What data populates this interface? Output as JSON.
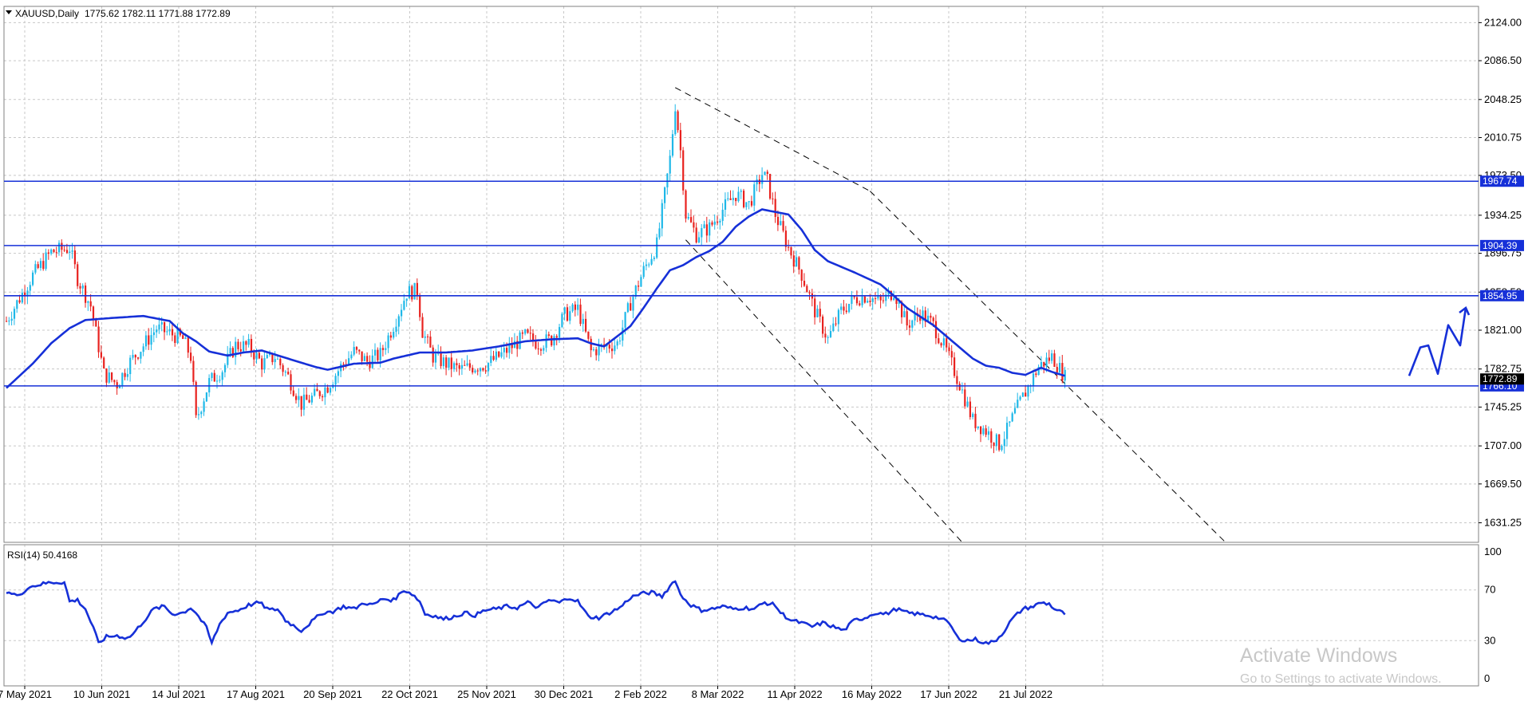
{
  "header": {
    "symbol": "XAUUSD,Daily",
    "ohlc": "1775.62 1782.11 1771.88 1772.89"
  },
  "rsi_header": "RSI(14) 50.4168",
  "watermark": {
    "title": "Activate Windows",
    "subtitle": "Go to Settings to activate Windows."
  },
  "colors": {
    "bull": "#1fb8e8",
    "bear": "#e8221f",
    "ma": "#1630d8",
    "level": "#1630d8",
    "grid": "#c8c8c8",
    "frame": "#808080"
  },
  "chart_data": {
    "type": "candlestick",
    "price_range": [
      1612,
      2140
    ],
    "price_ticks": [
      2124.0,
      2086.5,
      2048.25,
      2010.75,
      1973.5,
      1934.25,
      1896.75,
      1858.5,
      1821.0,
      1782.75,
      1745.25,
      1707.0,
      1669.5,
      1631.25
    ],
    "price_tick_labels": [
      "2124.00",
      "2086.50",
      "2048.25",
      "2010.75",
      "1973.50",
      "1934.25",
      "1896.75",
      "1858.50",
      "1821.00",
      "1782.75",
      "1745.25",
      "1707.00",
      "1669.50",
      "1631.25"
    ],
    "date_labels": [
      "7 May 2021",
      "10 Jun 2021",
      "14 Jul 2021",
      "17 Aug 2021",
      "20 Sep 2021",
      "22 Oct 2021",
      "25 Nov 2021",
      "30 Dec 2021",
      "2 Feb 2022",
      "8 Mar 2022",
      "11 Apr 2022",
      "16 May 2022",
      "17 Jun 2022",
      "21 Jul 2022"
    ],
    "levels": [
      {
        "price": 1967.74,
        "label": "1967.74"
      },
      {
        "price": 1904.39,
        "label": "1904.39"
      },
      {
        "price": 1854.95,
        "label": "1854.95"
      },
      {
        "price": 1766.1,
        "label": "1766.10"
      }
    ],
    "current_price": {
      "price": 1772.89,
      "label": "1772.89"
    },
    "close_anchors": [
      [
        0,
        1830
      ],
      [
        10,
        1875
      ],
      [
        17,
        1898
      ],
      [
        24,
        1902
      ],
      [
        27,
        1872
      ],
      [
        32,
        1845
      ],
      [
        37,
        1778
      ],
      [
        42,
        1768
      ],
      [
        47,
        1790
      ],
      [
        52,
        1806
      ],
      [
        57,
        1823
      ],
      [
        62,
        1818
      ],
      [
        67,
        1812
      ],
      [
        70,
        1795
      ],
      [
        72,
        1732
      ],
      [
        77,
        1770
      ],
      [
        82,
        1782
      ],
      [
        87,
        1806
      ],
      [
        92,
        1805
      ],
      [
        97,
        1788
      ],
      [
        102,
        1795
      ],
      [
        107,
        1775
      ],
      [
        112,
        1748
      ],
      [
        117,
        1756
      ],
      [
        122,
        1766
      ],
      [
        127,
        1785
      ],
      [
        132,
        1800
      ],
      [
        137,
        1790
      ],
      [
        142,
        1797
      ],
      [
        147,
        1826
      ],
      [
        152,
        1858
      ],
      [
        156,
        1860
      ],
      [
        158,
        1820
      ],
      [
        162,
        1795
      ],
      [
        167,
        1788
      ],
      [
        172,
        1782
      ],
      [
        177,
        1785
      ],
      [
        182,
        1787
      ],
      [
        187,
        1795
      ],
      [
        192,
        1805
      ],
      [
        197,
        1815
      ],
      [
        202,
        1808
      ],
      [
        207,
        1812
      ],
      [
        212,
        1836
      ],
      [
        217,
        1842
      ],
      [
        222,
        1800
      ],
      [
        227,
        1805
      ],
      [
        232,
        1808
      ],
      [
        237,
        1848
      ],
      [
        242,
        1880
      ],
      [
        247,
        1905
      ],
      [
        250,
        1955
      ],
      [
        252,
        1990
      ],
      [
        254,
        2043
      ],
      [
        256,
        1998
      ],
      [
        258,
        1935
      ],
      [
        262,
        1915
      ],
      [
        267,
        1922
      ],
      [
        272,
        1940
      ],
      [
        277,
        1955
      ],
      [
        282,
        1945
      ],
      [
        287,
        1975
      ],
      [
        289,
        1968
      ],
      [
        292,
        1935
      ],
      [
        297,
        1902
      ],
      [
        302,
        1876
      ],
      [
        307,
        1840
      ],
      [
        312,
        1812
      ],
      [
        317,
        1840
      ],
      [
        322,
        1852
      ],
      [
        327,
        1855
      ],
      [
        332,
        1848
      ],
      [
        337,
        1860
      ],
      [
        342,
        1826
      ],
      [
        347,
        1838
      ],
      [
        352,
        1826
      ],
      [
        357,
        1800
      ],
      [
        362,
        1768
      ],
      [
        367,
        1732
      ],
      [
        372,
        1722
      ],
      [
        377,
        1708
      ],
      [
        380,
        1722
      ],
      [
        383,
        1740
      ],
      [
        387,
        1760
      ],
      [
        392,
        1785
      ],
      [
        397,
        1795
      ],
      [
        402,
        1775
      ]
    ],
    "ma_anchors": [
      [
        0,
        1764
      ],
      [
        10,
        1788
      ],
      [
        17,
        1808
      ],
      [
        24,
        1823
      ],
      [
        30,
        1831
      ],
      [
        40,
        1833
      ],
      [
        52,
        1835
      ],
      [
        62,
        1830
      ],
      [
        67,
        1818
      ],
      [
        72,
        1810
      ],
      [
        77,
        1800
      ],
      [
        84,
        1796
      ],
      [
        90,
        1799
      ],
      [
        97,
        1801
      ],
      [
        107,
        1793
      ],
      [
        117,
        1785
      ],
      [
        122,
        1782
      ],
      [
        132,
        1788
      ],
      [
        142,
        1789
      ],
      [
        147,
        1793
      ],
      [
        157,
        1799
      ],
      [
        167,
        1799
      ],
      [
        177,
        1801
      ],
      [
        187,
        1805
      ],
      [
        197,
        1810
      ],
      [
        207,
        1812
      ],
      [
        217,
        1813
      ],
      [
        222,
        1808
      ],
      [
        227,
        1805
      ],
      [
        237,
        1825
      ],
      [
        242,
        1843
      ],
      [
        247,
        1862
      ],
      [
        252,
        1880
      ],
      [
        257,
        1885
      ],
      [
        262,
        1893
      ],
      [
        267,
        1899
      ],
      [
        272,
        1908
      ],
      [
        277,
        1923
      ],
      [
        282,
        1933
      ],
      [
        287,
        1940
      ],
      [
        297,
        1935
      ],
      [
        302,
        1920
      ],
      [
        307,
        1900
      ],
      [
        312,
        1889
      ],
      [
        322,
        1878
      ],
      [
        332,
        1866
      ],
      [
        337,
        1855
      ],
      [
        342,
        1843
      ],
      [
        352,
        1826
      ],
      [
        357,
        1815
      ],
      [
        362,
        1804
      ],
      [
        367,
        1793
      ],
      [
        372,
        1786
      ],
      [
        377,
        1784
      ],
      [
        382,
        1779
      ],
      [
        387,
        1777
      ],
      [
        393,
        1784
      ],
      [
        397,
        1780
      ],
      [
        402,
        1776
      ]
    ],
    "rsi": {
      "range": [
        0,
        100
      ],
      "tick_labels": [
        "100",
        "70",
        "30",
        "0"
      ],
      "ticks": [
        100,
        70,
        30,
        0
      ],
      "anchors": [
        [
          0,
          69
        ],
        [
          5,
          65
        ],
        [
          8,
          72
        ],
        [
          12,
          74
        ],
        [
          17,
          76
        ],
        [
          22,
          76
        ],
        [
          24,
          61
        ],
        [
          27,
          62
        ],
        [
          30,
          55
        ],
        [
          33,
          40
        ],
        [
          35,
          28
        ],
        [
          38,
          33
        ],
        [
          42,
          34
        ],
        [
          46,
          32
        ],
        [
          48,
          35
        ],
        [
          52,
          45
        ],
        [
          56,
          55
        ],
        [
          60,
          57
        ],
        [
          63,
          51
        ],
        [
          67,
          52
        ],
        [
          70,
          56
        ],
        [
          72,
          52
        ],
        [
          76,
          40
        ],
        [
          78,
          28
        ],
        [
          81,
          43
        ],
        [
          84,
          52
        ],
        [
          88,
          54
        ],
        [
          92,
          58
        ],
        [
          96,
          60
        ],
        [
          100,
          54
        ],
        [
          103,
          55
        ],
        [
          106,
          46
        ],
        [
          109,
          42
        ],
        [
          112,
          38
        ],
        [
          116,
          45
        ],
        [
          120,
          52
        ],
        [
          124,
          53
        ],
        [
          128,
          57
        ],
        [
          132,
          55
        ],
        [
          136,
          60
        ],
        [
          139,
          58
        ],
        [
          143,
          63
        ],
        [
          147,
          62
        ],
        [
          151,
          70
        ],
        [
          154,
          67
        ],
        [
          157,
          61
        ],
        [
          159,
          51
        ],
        [
          162,
          50
        ],
        [
          166,
          47
        ],
        [
          170,
          49
        ],
        [
          174,
          52
        ],
        [
          178,
          50
        ],
        [
          182,
          54
        ],
        [
          186,
          55
        ],
        [
          190,
          57
        ],
        [
          194,
          56
        ],
        [
          198,
          60
        ],
        [
          202,
          56
        ],
        [
          206,
          62
        ],
        [
          210,
          60
        ],
        [
          214,
          64
        ],
        [
          217,
          61
        ],
        [
          221,
          49
        ],
        [
          225,
          48
        ],
        [
          229,
          52
        ],
        [
          233,
          56
        ],
        [
          237,
          64
        ],
        [
          241,
          67
        ],
        [
          245,
          68
        ],
        [
          249,
          65
        ],
        [
          252,
          73
        ],
        [
          254,
          78
        ],
        [
          256,
          66
        ],
        [
          260,
          58
        ],
        [
          264,
          54
        ],
        [
          268,
          55
        ],
        [
          272,
          57
        ],
        [
          276,
          55
        ],
        [
          280,
          56
        ],
        [
          284,
          55
        ],
        [
          288,
          60
        ],
        [
          292,
          58
        ],
        [
          294,
          52
        ],
        [
          298,
          46
        ],
        [
          302,
          44
        ],
        [
          306,
          41
        ],
        [
          310,
          44
        ],
        [
          314,
          41
        ],
        [
          318,
          38
        ],
        [
          322,
          46
        ],
        [
          326,
          48
        ],
        [
          330,
          52
        ],
        [
          334,
          51
        ],
        [
          338,
          55
        ],
        [
          342,
          52
        ],
        [
          346,
          51
        ],
        [
          350,
          50
        ],
        [
          354,
          48
        ],
        [
          358,
          44
        ],
        [
          361,
          33
        ],
        [
          364,
          30
        ],
        [
          368,
          31
        ],
        [
          372,
          28
        ],
        [
          375,
          29
        ],
        [
          378,
          35
        ],
        [
          382,
          47
        ],
        [
          386,
          55
        ],
        [
          390,
          57
        ],
        [
          393,
          60
        ],
        [
          396,
          59
        ],
        [
          398,
          55
        ],
        [
          402,
          51
        ]
      ]
    },
    "channel_lines": [
      {
        "from": [
          254,
          2060
        ],
        "to": [
          328,
          1958
        ]
      },
      {
        "from": [
          328,
          1958
        ],
        "to": [
          463,
          1612
        ]
      },
      {
        "from": [
          258,
          1910
        ],
        "to": [
          363,
          1612
        ]
      }
    ],
    "projection": [
      [
        1766,
        1776
      ],
      [
        1780,
        1804
      ],
      [
        1790,
        1806
      ],
      [
        1802,
        1778
      ],
      [
        1815,
        1826
      ],
      [
        1830,
        1806
      ],
      [
        1837,
        1843
      ]
    ]
  }
}
